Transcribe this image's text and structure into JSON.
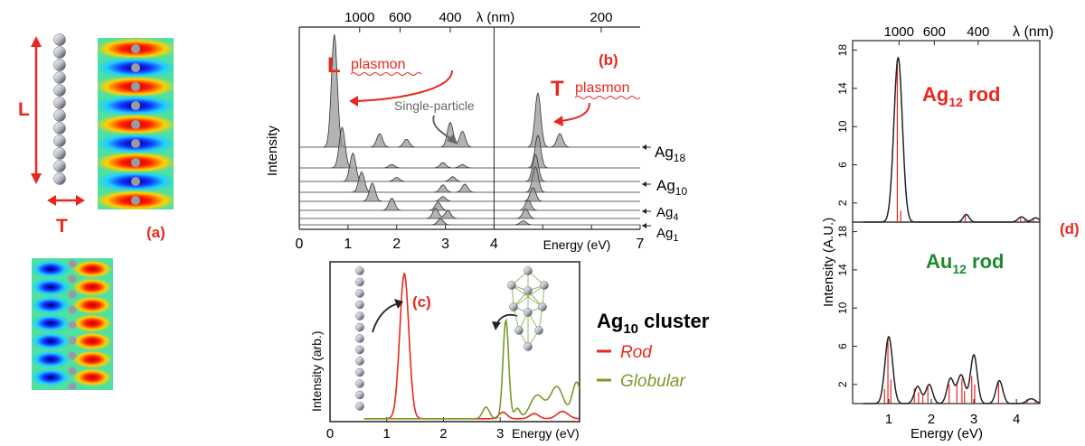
{
  "colors": {
    "accent_red": "#e8281e",
    "globular_green": "#7a9a2a",
    "dark_green": "#1f8a2e",
    "curve_black": "#222222",
    "peak_fill": "#9a9a9a"
  },
  "panel_a": {
    "label": "(a)",
    "L_label": "L",
    "T_label": "T",
    "icons": [
      "atom-chain-icon",
      "near-field-map-longitudinal",
      "near-field-map-transverse"
    ]
  },
  "panel_b": {
    "label": "(b)",
    "ylabel": "Intensity",
    "xlabel": "Energy (eV)",
    "top_axis_symbol": "λ (nm)",
    "L_plasmon": {
      "big": "L",
      "small": "plasmon"
    },
    "T_plasmon": {
      "big": "T",
      "small": "plasmon"
    },
    "single_particle": "Single-particle",
    "species": [
      {
        "base": "Ag",
        "sub": "18"
      },
      {
        "base": "Ag",
        "sub": "10"
      },
      {
        "base": "Ag",
        "sub": "4"
      },
      {
        "base": "Ag",
        "sub": "1"
      }
    ]
  },
  "panel_c": {
    "label": "(c)",
    "ylabel": "Intensity (arb.)",
    "xlabel": "Energy (eV)",
    "legend": {
      "title_base": "Ag",
      "title_sub": "10",
      "title_rest": " cluster",
      "entries": [
        "Rod",
        "Globular"
      ]
    }
  },
  "panel_d": {
    "label": "(d)",
    "ylabel": "Intensity (A.U.)",
    "xlabel": "Energy (eV)",
    "top_axis_symbol": "λ (nm)",
    "top_label": {
      "base": "Ag",
      "sub": "12",
      "rest": " rod"
    },
    "bottom_label": {
      "base": "Au",
      "sub": "12",
      "rest": " rod"
    }
  },
  "chart_data": [
    {
      "id": "b",
      "type": "area",
      "xlabel": "Energy (eV)",
      "ylabel": "Intensity",
      "xlim": [
        0,
        7
      ],
      "x_ticks": [
        "0",
        "1",
        "2",
        "3",
        "4",
        "5",
        "6",
        "7"
      ],
      "secondary_x_axis": {
        "label": "λ (nm)",
        "ticks": [
          {
            "label": "1000",
            "energy": 1.24
          },
          {
            "label": "600",
            "energy": 2.07
          },
          {
            "label": "400",
            "energy": 3.1
          },
          {
            "label": "200",
            "energy": 6.2
          }
        ]
      },
      "series_order": "top to bottom",
      "series": [
        {
          "peaks": [
            [
              0.72,
              1.0
            ],
            [
              1.65,
              0.12
            ],
            [
              2.2,
              0.07
            ],
            [
              3.1,
              0.22
            ],
            [
              3.35,
              0.14
            ],
            [
              4.9,
              0.48
            ],
            [
              5.35,
              0.12
            ]
          ]
        },
        {
          "peaks": [
            [
              0.88,
              0.6
            ],
            [
              1.9,
              0.05
            ],
            [
              2.95,
              0.08
            ],
            [
              3.35,
              0.05
            ],
            [
              4.9,
              0.48
            ]
          ]
        },
        {
          "peaks": [
            [
              1.1,
              0.42
            ],
            [
              2.0,
              0.06
            ],
            [
              3.15,
              0.07
            ],
            [
              4.85,
              0.4
            ]
          ]
        },
        {
          "peaks": [
            [
              1.28,
              0.3
            ],
            [
              2.95,
              0.11
            ],
            [
              3.4,
              0.12
            ],
            [
              4.85,
              0.38
            ]
          ]
        },
        {
          "peaks": [
            [
              1.5,
              0.27
            ],
            [
              2.95,
              0.07
            ],
            [
              4.8,
              0.2
            ]
          ]
        },
        {
          "peaks": [
            [
              1.9,
              0.18
            ],
            [
              2.85,
              0.12
            ],
            [
              4.7,
              0.15
            ]
          ]
        },
        {
          "peaks": [
            [
              2.8,
              0.15
            ],
            [
              3.05,
              0.12
            ],
            [
              4.65,
              0.14
            ]
          ]
        },
        {
          "peaks": [
            [
              2.9,
              0.09
            ],
            [
              4.6,
              0.06
            ]
          ]
        }
      ]
    },
    {
      "id": "c",
      "type": "line",
      "xlabel": "Energy (eV)",
      "ylabel": "Intensity (arb.)",
      "xlim": [
        0,
        4.4
      ],
      "ylim": [
        0,
        1.1
      ],
      "x_ticks": [
        "0",
        "1",
        "2",
        "3"
      ],
      "series": [
        {
          "name": "Rod",
          "color": "#e8281e",
          "peaks": [
            [
              1.31,
              1.0,
              0.08
            ],
            [
              3.05,
              0.045,
              0.07
            ],
            [
              3.6,
              0.035,
              0.08
            ],
            [
              4.1,
              0.05,
              0.1
            ]
          ]
        },
        {
          "name": "Globular",
          "color": "#7a9a2a",
          "peaks": [
            [
              2.75,
              0.08,
              0.06
            ],
            [
              3.1,
              0.68,
              0.05
            ],
            [
              3.3,
              0.07,
              0.05
            ],
            [
              3.65,
              0.16,
              0.12
            ],
            [
              4.0,
              0.22,
              0.12
            ],
            [
              4.35,
              0.25,
              0.08
            ]
          ]
        }
      ]
    },
    {
      "id": "d-top",
      "type": "line",
      "xlim": [
        0.15,
        4.55
      ],
      "ylim": [
        0,
        19
      ],
      "y_ticks": [
        "2",
        "6",
        "10",
        "14",
        "18"
      ],
      "secondary_x_axis": {
        "label": "λ (nm)",
        "ticks": [
          {
            "label": "1000",
            "energy": 1.24
          },
          {
            "label": "600",
            "energy": 2.07
          },
          {
            "label": "400",
            "energy": 3.1
          }
        ]
      },
      "envelope_peaks": [
        [
          1.22,
          17.2,
          0.1
        ],
        [
          2.82,
          0.8,
          0.07
        ],
        [
          4.12,
          0.55,
          0.08
        ],
        [
          4.45,
          0.45,
          0.08
        ]
      ],
      "sticks": [
        [
          1.2,
          17
        ],
        [
          1.28,
          1.2
        ],
        [
          2.8,
          0.8
        ],
        [
          4.1,
          0.5
        ],
        [
          4.2,
          0.3
        ],
        [
          4.4,
          0.45
        ]
      ]
    },
    {
      "id": "d-bottom",
      "type": "line",
      "xlabel": "Energy (eV)",
      "xlim": [
        0.15,
        4.55
      ],
      "ylim": [
        0,
        19
      ],
      "x_ticks": [
        "1",
        "2",
        "3",
        "4"
      ],
      "y_ticks": [
        "2",
        "6",
        "10",
        "14",
        "18"
      ],
      "envelope_peaks": [
        [
          1.0,
          7.0,
          0.09
        ],
        [
          1.68,
          1.8,
          0.08
        ],
        [
          1.95,
          2.0,
          0.08
        ],
        [
          2.45,
          2.6,
          0.08
        ],
        [
          2.7,
          3.0,
          0.09
        ],
        [
          3.0,
          5.1,
          0.08
        ],
        [
          3.6,
          2.4,
          0.08
        ],
        [
          4.35,
          0.5,
          0.1
        ]
      ],
      "sticks": [
        [
          0.9,
          1.5
        ],
        [
          0.98,
          6.8
        ],
        [
          1.05,
          2.5
        ],
        [
          1.6,
          1.6
        ],
        [
          1.7,
          1.2
        ],
        [
          1.8,
          0.8
        ],
        [
          1.92,
          1.7
        ],
        [
          2.42,
          2.0
        ],
        [
          2.6,
          2.3
        ],
        [
          2.72,
          2.6
        ],
        [
          2.78,
          1.3
        ],
        [
          2.95,
          2.9
        ],
        [
          3.02,
          2.0
        ],
        [
          3.58,
          2.3
        ],
        [
          4.25,
          0.5
        ],
        [
          4.45,
          0.4
        ]
      ]
    }
  ]
}
